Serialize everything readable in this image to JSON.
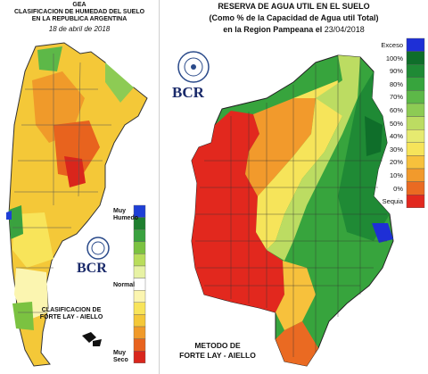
{
  "left": {
    "title": [
      "GEA",
      "CLASIFICACION DE HUMEDAD DEL SUELO",
      "EN LA REPUBLICA ARGENTINA"
    ],
    "date": "18 de abril de 2018",
    "legend": {
      "top_label": "Muy\nHumedo",
      "mid_label": "Normal",
      "bottom_label": "Muy\nSeco",
      "colors": [
        "#1e3fd6",
        "#1f7f2f",
        "#3aa23f",
        "#7bc241",
        "#b9dd5b",
        "#e7f2a4",
        "#ffffff",
        "#fbf5b0",
        "#f8e45a",
        "#f4c838",
        "#f09a2a",
        "#e8631e",
        "#d9261c"
      ]
    },
    "logo_text": "BCR",
    "method": [
      "CLASIFICACION DE",
      "FORTE LAY - AIELLO"
    ]
  },
  "right": {
    "title": "RESERVA DE AGUA UTIL EN EL SUELO",
    "subtitle": "(Como % de la Capacidad de  Agua util Total)",
    "region_prefix": "en la Region Pampeana el ",
    "date": "23/04/2018",
    "logo_text": "BCR",
    "legend": [
      {
        "label": "Exceso",
        "color": "#1e2fd6"
      },
      {
        "label": "100%",
        "color": "#0f6e2a"
      },
      {
        "label": "90%",
        "color": "#1f8a35"
      },
      {
        "label": "80%",
        "color": "#37a43d"
      },
      {
        "label": "70%",
        "color": "#5db848"
      },
      {
        "label": "60%",
        "color": "#8dcb54"
      },
      {
        "label": "50%",
        "color": "#bcdc62"
      },
      {
        "label": "40%",
        "color": "#e6ea70"
      },
      {
        "label": "30%",
        "color": "#f6e45a"
      },
      {
        "label": "20%",
        "color": "#f7c13c"
      },
      {
        "label": "10%",
        "color": "#f29a2c"
      },
      {
        "label": "0%",
        "color": "#ea6a22"
      },
      {
        "label": "Sequia",
        "color": "#e2281e"
      }
    ],
    "method": [
      "METODO DE",
      "FORTE LAY - AIELLO"
    ]
  }
}
